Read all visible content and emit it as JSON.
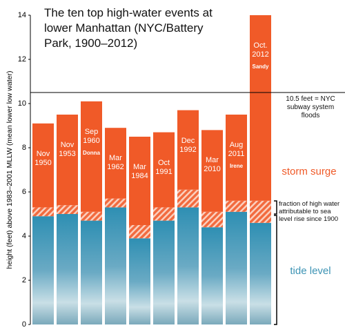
{
  "chart_data": {
    "type": "stacked_bar",
    "title": "The ten top high-water events at lower Manhattan (NYC/Battery Park, 1900–2012)",
    "y_label": "height (feet) above 1983–2001 MLLW (mean lower low water)",
    "categories": [
      "Nov 1950",
      "Nov 1953",
      "Sep 1960",
      "Mar 1962",
      "Mar 1984",
      "Oct 1991",
      "Dec 1992",
      "Mar 2010",
      "Aug 2011",
      "Oct. 2012"
    ],
    "storm_names": [
      null,
      null,
      "Donna",
      null,
      null,
      null,
      null,
      null,
      "Irene",
      "Sandy"
    ],
    "series": [
      {
        "name": "tide level",
        "color": "#3c93b4",
        "values": [
          4.9,
          5.0,
          4.7,
          5.3,
          3.9,
          4.7,
          5.3,
          4.4,
          5.1,
          4.6
        ]
      },
      {
        "name": "fraction of high water attributable to sea level rise since 1900",
        "color": "#f26b3f",
        "values": [
          0.4,
          0.4,
          0.4,
          0.4,
          0.6,
          0.6,
          0.8,
          0.7,
          0.5,
          1.0
        ]
      },
      {
        "name": "storm surge",
        "color": "#f05a28",
        "values": [
          3.8,
          4.1,
          5.0,
          3.2,
          4.0,
          3.4,
          3.6,
          3.7,
          3.9,
          8.4
        ]
      }
    ],
    "ylim": [
      0,
      14
    ],
    "yticks": [
      0,
      2,
      4,
      6,
      8,
      10,
      12,
      14
    ],
    "hline": {
      "value": 10.5,
      "label": "10.5 feet = NYC subway system floods"
    }
  }
}
